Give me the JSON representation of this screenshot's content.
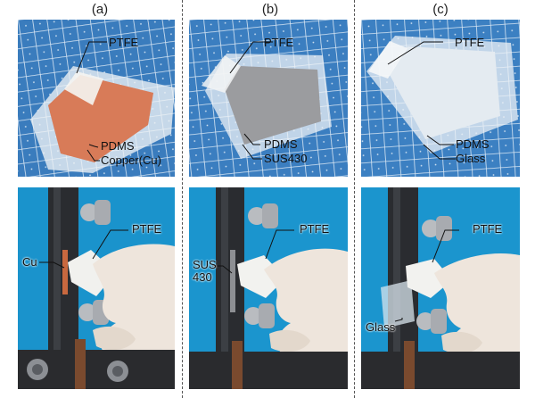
{
  "panels": [
    {
      "letter": "(a)",
      "top_labels": [
        "PTFE",
        "PDMS",
        "Copper(Cu)"
      ],
      "bottom_labels": [
        "PTFE",
        "Cu"
      ]
    },
    {
      "letter": "(b)",
      "top_labels": [
        "PTFE",
        "PDMS",
        "SUS430"
      ],
      "bottom_labels": [
        "PTFE",
        "SUS\n430"
      ]
    },
    {
      "letter": "(c)",
      "top_labels": [
        "PTFE",
        "PDMS",
        "Glass"
      ],
      "bottom_labels": [
        "PTFE",
        "Glass"
      ]
    }
  ],
  "colors": {
    "mat_blue": "#3b7fc0",
    "grid_white": "#dbe8f4",
    "copper": "#d0704e",
    "steel": "#8d8f93",
    "glass": "#e6edf3",
    "backdrop_blue": "#1f9fd8",
    "glove": "#efe7df",
    "clamp": "#2a2c30"
  }
}
